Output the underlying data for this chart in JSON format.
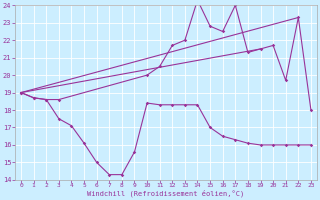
{
  "xlabel": "Windchill (Refroidissement éolien,°C)",
  "xlim": [
    -0.5,
    23.5
  ],
  "ylim": [
    14,
    24
  ],
  "yticks": [
    14,
    15,
    16,
    17,
    18,
    19,
    20,
    21,
    22,
    23,
    24
  ],
  "xticks": [
    0,
    1,
    2,
    3,
    4,
    5,
    6,
    7,
    8,
    9,
    10,
    11,
    12,
    13,
    14,
    15,
    16,
    17,
    18,
    19,
    20,
    21,
    22,
    23
  ],
  "background_color": "#cceeff",
  "line_color": "#993399",
  "line1_x": [
    0,
    1,
    2,
    3,
    4,
    5,
    6,
    7,
    8,
    9,
    10,
    11,
    12,
    13,
    14,
    15,
    16,
    17,
    18,
    19,
    20,
    21,
    22,
    23
  ],
  "line1_y": [
    19,
    18.7,
    18.6,
    17.5,
    17.1,
    16.1,
    15.0,
    14.3,
    14.3,
    15.6,
    18.4,
    18.3,
    18.3,
    18.3,
    18.3,
    17.0,
    16.5,
    16.3,
    16.1,
    16.0,
    16.0,
    16.0,
    16.0,
    16.0
  ],
  "line2_x": [
    0,
    1,
    2,
    3,
    10,
    11,
    12,
    13,
    14,
    15,
    16,
    17,
    18,
    19,
    20,
    21,
    22,
    23
  ],
  "line2_y": [
    19,
    18.7,
    18.6,
    18.6,
    20.0,
    20.5,
    21.7,
    22.0,
    24.3,
    22.8,
    22.5,
    24.0,
    21.3,
    21.5,
    21.7,
    19.7,
    23.3,
    18.0
  ],
  "line3_x": [
    0,
    22
  ],
  "line3_y": [
    19,
    23.3
  ],
  "line4_x": [
    0,
    19
  ],
  "line4_y": [
    19,
    21.5
  ]
}
